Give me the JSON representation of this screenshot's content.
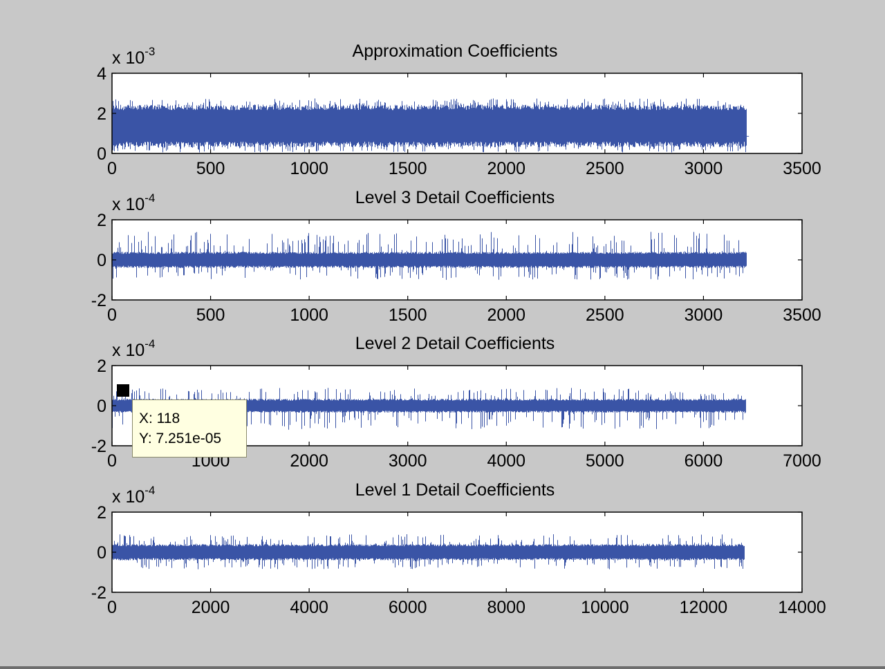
{
  "chart_data": [
    {
      "type": "line",
      "title": "Approximation Coefficients",
      "exponent_prefix": "x 10",
      "exponent_power": "-3",
      "series": [
        {
          "n_samples": 3220,
          "band_lower": 0.45,
          "band_upper": 2.3,
          "spike_min": 0.05,
          "spike_max": 2.75,
          "end_value": 0.85
        }
      ],
      "xlim": [
        0,
        3500
      ],
      "ylim": [
        0,
        4
      ],
      "xticks": [
        0,
        500,
        1000,
        1500,
        2000,
        2500,
        3000,
        3500
      ],
      "xtick_labels": [
        "0",
        "500",
        "1000",
        "1500",
        "2000",
        "2500",
        "3000",
        "3500"
      ],
      "yticks": [
        0,
        2,
        4
      ],
      "ytick_labels": [
        "0",
        "2",
        "4"
      ],
      "grid": false
    },
    {
      "type": "line",
      "title": "Level 3 Detail Coefficients",
      "exponent_prefix": "x 10",
      "exponent_power": "-4",
      "series": [
        {
          "n_samples": 3220,
          "band_lower": -0.35,
          "band_upper": 0.35,
          "spike_min": -1.0,
          "spike_max": 1.4
        }
      ],
      "xlim": [
        0,
        3500
      ],
      "ylim": [
        -2,
        2
      ],
      "xticks": [
        0,
        500,
        1000,
        1500,
        2000,
        2500,
        3000,
        3500
      ],
      "xtick_labels": [
        "0",
        "500",
        "1000",
        "1500",
        "2000",
        "2500",
        "3000",
        "3500"
      ],
      "yticks": [
        -2,
        0,
        2
      ],
      "ytick_labels": [
        "-2",
        "0",
        "2"
      ],
      "grid": false
    },
    {
      "type": "line",
      "title": "Level 2 Detail Coefficients",
      "exponent_prefix": "x 10",
      "exponent_power": "-4",
      "series": [
        {
          "n_samples": 6430,
          "band_lower": -0.3,
          "band_upper": 0.3,
          "spike_min": -1.2,
          "spike_max": 0.9
        }
      ],
      "xlim": [
        0,
        7000
      ],
      "ylim": [
        -2,
        2
      ],
      "xticks": [
        0,
        1000,
        2000,
        3000,
        4000,
        5000,
        6000,
        7000
      ],
      "xtick_labels": [
        "0",
        "1000",
        "2000",
        "3000",
        "4000",
        "5000",
        "6000",
        "7000"
      ],
      "yticks": [
        -2,
        0,
        2
      ],
      "ytick_labels": [
        "-2",
        "0",
        "2"
      ],
      "grid": false,
      "annotations": [
        {
          "type": "datatip",
          "x": 118,
          "y": 7.251e-05,
          "label_x": "X: 118",
          "label_y": "Y: 7.251e-05"
        }
      ]
    },
    {
      "type": "line",
      "title": "Level 1 Detail Coefficients",
      "exponent_prefix": "x 10",
      "exponent_power": "-4",
      "series": [
        {
          "n_samples": 12830,
          "band_lower": -0.35,
          "band_upper": 0.35,
          "spike_min": -0.85,
          "spike_max": 0.9
        }
      ],
      "xlim": [
        0,
        14000
      ],
      "ylim": [
        -2,
        2
      ],
      "xticks": [
        0,
        2000,
        4000,
        6000,
        8000,
        10000,
        12000,
        14000
      ],
      "xtick_labels": [
        "0",
        "2000",
        "4000",
        "6000",
        "8000",
        "10000",
        "12000",
        "14000"
      ],
      "yticks": [
        -2,
        0,
        2
      ],
      "ytick_labels": [
        "-2",
        "0",
        "2"
      ],
      "grid": false
    }
  ],
  "colors": {
    "figure_bg": "#c8c8c8",
    "axes_bg": "#ffffff",
    "line": "#3a54a6",
    "datatip_bg": "#ffffe1"
  }
}
